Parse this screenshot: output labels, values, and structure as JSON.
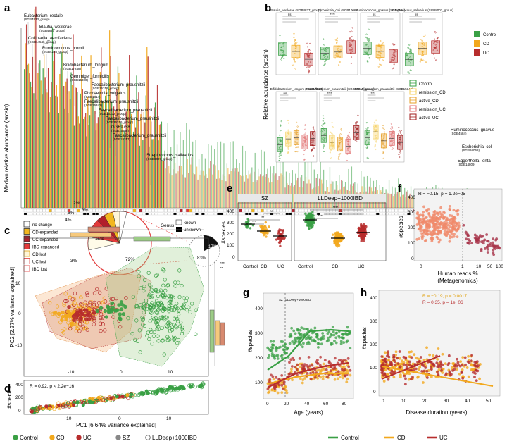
{
  "panels": {
    "a": {
      "label": "a",
      "ylabel": "Median relative abundance (arcsin)",
      "bars_left_count": 44,
      "bars_right_count": 100,
      "annotations": [
        {
          "name": "Eubacterium_rectale",
          "sub": "(SGB4933_group)"
        },
        {
          "name": "Blautia_wexlerae",
          "sub": "(SGB4837_group)"
        },
        {
          "name": "Collinsella_aerofaciens",
          "sub": "(SGB14546_group)"
        },
        {
          "name": "Ruminococcus_bromii",
          "sub": "(SGB4285_group)"
        },
        {
          "name": "Bifidobacterium_longum",
          "sub": "(SGB17248)"
        },
        {
          "name": "Gemmiger_formicilis",
          "sub": "(SGB15300)"
        },
        {
          "name": "Faecalibacterium_prausnitzii",
          "sub": "(SGB15318_group)"
        },
        {
          "name": "Phocaeicola_vulgatus",
          "sub": "(SGB1814)"
        },
        {
          "name": "Faecalibacterium_prausnitzii",
          "sub": "(SGB15342)"
        },
        {
          "name": "Faecalibacterium_prausnitzii",
          "sub": "(SGB15332_group)"
        },
        {
          "name": "Faecalibacterium_prausnitzii",
          "sub": "(SGB15316_group)"
        },
        {
          "name": "GGB9758",
          "sub": "(SGB15368)"
        },
        {
          "name": "Faecalibacterium_prausnitzii",
          "sub": "(SGB15317)"
        },
        {
          "name": "Streptococcus_salivarius",
          "sub": "(SGB8007_group)"
        }
      ],
      "annotations_right": [
        {
          "name": "Ruminococcus_gnavus",
          "sub": "(SGB4584)"
        },
        {
          "name": "Escherichia_coli",
          "sub": "(SGB10068)"
        },
        {
          "name": "Eggerthella_lenta",
          "sub": "(SGB14809)"
        }
      ],
      "legend": [
        {
          "label": "no change",
          "color": "#ffffff"
        },
        {
          "label": "CD expanded",
          "color": "#f2b71f"
        },
        {
          "label": "UC expanded",
          "color": "#b11f2b"
        },
        {
          "label": "IBD expanded",
          "color": "#e23a3a"
        },
        {
          "label": "CD lost",
          "color": "#fff6d8"
        },
        {
          "label": "UC lost",
          "color": "#ffffff"
        },
        {
          "label": "IBD lost",
          "color": "#ffffff"
        }
      ],
      "pie_labels": [
        "3%",
        "2%",
        "5%",
        "4%",
        "11%",
        "72%",
        "3%"
      ],
      "genus_legend": {
        "title": "Genus",
        "items": [
          "known",
          "unknown"
        ]
      },
      "small_pie_labels": [
        "17%",
        "83%"
      ]
    },
    "b": {
      "label": "b",
      "ylabel": "Relative abundance (arcsin)",
      "top_titles": [
        "Blautia_wexlerae (SGB4837_group)",
        "Escherichia_coli (SGB10068)",
        "Ruminococcus_gnavus (SGB4584)",
        "Streptococcus_salivarius (SGB8007_group)"
      ],
      "bottom_titles": [
        "Bifidobacterium_longum (SGB17248)",
        "Faecalibacterium_prausnitzii (SGB15318_group)",
        "Faecalibacterium_prausnitzii (SGB15342)"
      ],
      "legend_top": [
        {
          "label": "Control",
          "color": "#3aa045"
        },
        {
          "label": "CD",
          "color": "#f2a81d"
        },
        {
          "label": "UC",
          "color": "#b72d2d"
        }
      ],
      "legend_bottom": [
        {
          "label": "Control",
          "color": "#3aa045"
        },
        {
          "label": "remission_CD",
          "color": "#f6cf5a"
        },
        {
          "label": "active_CD",
          "color": "#e7a12a"
        },
        {
          "label": "remission_UC",
          "color": "#e06d6d"
        },
        {
          "label": "active_UC",
          "color": "#a11d1d"
        }
      ],
      "sig": [
        "ns",
        "****",
        "***"
      ]
    },
    "c": {
      "label": "c",
      "ylabel": "PC2 [2.27% variance explained]",
      "xticks": [
        "-10",
        "0",
        "10"
      ],
      "yticks": [
        "-10",
        "0",
        "10"
      ],
      "sig": [
        "****",
        "**"
      ]
    },
    "d": {
      "label": "d",
      "ylabel": "#species",
      "xlabel": "PC1 [6.64% variance explained]",
      "stat": "R = 0.92, p < 2.2e−16",
      "yticks": [
        "400",
        "200",
        "0"
      ],
      "xticks": [
        "-10",
        "0",
        "10"
      ]
    },
    "e": {
      "label": "e",
      "ylabel": "#species",
      "facets": [
        "SZ",
        "LLDeep+1000IBD"
      ],
      "xticks": [
        "Control",
        "CD",
        "UC"
      ],
      "yticks": [
        "400",
        "300",
        "200",
        "100",
        "0"
      ],
      "sig": [
        "ns",
        "***",
        "***",
        "****",
        "****",
        "****"
      ]
    },
    "f": {
      "label": "f",
      "ylabel": "#species",
      "xlabel": "Human reads %",
      "xlabel2": "(Metagenomics)",
      "stat": "R = −0.15, p = 1.2e−05",
      "xticks": [
        "0",
        "1",
        "10",
        "50",
        "100"
      ],
      "yticks": [
        "400",
        "300",
        "200",
        "100",
        "0"
      ]
    },
    "g": {
      "label": "g",
      "ylabel": "#species",
      "xlabel": "Age (years)",
      "annotation": "SZ | LLDeep+1000IBD",
      "xticks": [
        "0",
        "20",
        "40",
        "60",
        "80"
      ],
      "yticks": [
        "400",
        "300",
        "200",
        "100"
      ]
    },
    "h": {
      "label": "h",
      "ylabel": "#species",
      "xlabel": "Disease duration (years)",
      "stat_cd": "R = −0.19, p = 0.0017",
      "stat_uc": "R = 0.35, p = 1e−06",
      "xticks": [
        "0",
        "10",
        "20",
        "30",
        "40",
        "50"
      ],
      "yticks": [
        "400",
        "300",
        "200",
        "100",
        "0"
      ]
    }
  },
  "bottom_legend_left": [
    {
      "label": "Control",
      "color": "#3aa045"
    },
    {
      "label": "CD",
      "color": "#f2a81d"
    },
    {
      "label": "UC",
      "color": "#b72d2d"
    },
    {
      "label": "SZ",
      "color": "#888888"
    },
    {
      "label": "LLDeep+1000IBD",
      "color": "#ffffff"
    }
  ],
  "bottom_legend_right": [
    {
      "label": "Control",
      "color": "#3aa045"
    },
    {
      "label": "CD",
      "color": "#f2a81d"
    },
    {
      "label": "UC",
      "color": "#b72d2d"
    }
  ],
  "colors": {
    "control": "#3aa045",
    "cd": "#f2a81d",
    "uc": "#b72d2d",
    "salmon": "#f08a6a"
  }
}
